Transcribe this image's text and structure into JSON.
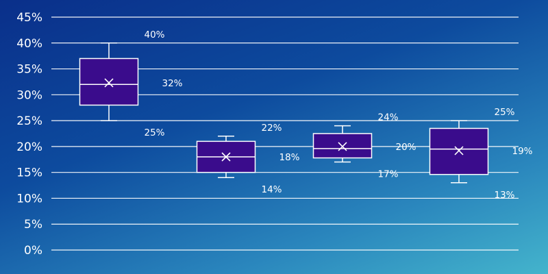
{
  "colors": {
    "box_fill": "#3a0c8c",
    "box_stroke": "#ffffff",
    "grid": "#ffffff",
    "text": "#ffffff"
  },
  "chart_data": {
    "type": "box",
    "title": "",
    "xlabel": "",
    "ylabel": "",
    "ylim": [
      0,
      45
    ],
    "y_tick_labels": [
      "0%",
      "5%",
      "10%",
      "15%",
      "20%",
      "25%",
      "30%",
      "35%",
      "40%",
      "45%"
    ],
    "grid": true,
    "legend": "none",
    "boxes": [
      {
        "min": 25,
        "q1": 28,
        "median": 32,
        "q3": 37,
        "max": 40,
        "mean": 32.3,
        "labels": {
          "max": "40%",
          "mean": "32%",
          "min": "25%"
        }
      },
      {
        "min": 14,
        "q1": 15,
        "median": 18,
        "q3": 21,
        "max": 22,
        "mean": 18,
        "labels": {
          "max": "22%",
          "mean": "18%",
          "min": "14%"
        }
      },
      {
        "min": 17,
        "q1": 17.8,
        "median": 19.6,
        "q3": 22.5,
        "max": 24,
        "mean": 20,
        "labels": {
          "max": "24%",
          "mean": "20%",
          "min": "17%"
        }
      },
      {
        "min": 13,
        "q1": 14.6,
        "median": 19.5,
        "q3": 23.5,
        "max": 25,
        "mean": 19.2,
        "labels": {
          "max": "25%",
          "mean": "19%",
          "min": "13%"
        }
      }
    ]
  }
}
